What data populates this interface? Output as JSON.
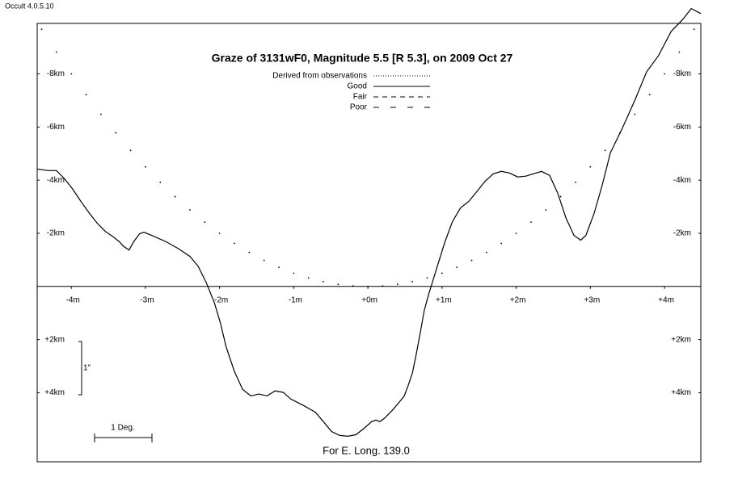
{
  "chart_data": {
    "type": "line",
    "program": "Occult 4.0.5.10",
    "title": "Graze of  3131wF0,  Magnitude 5.5 [R 5.3],  on 2009 Oct 27",
    "footer": "For E. Long. 139.0",
    "scale_labels": {
      "vertical": "1\"",
      "horizontal": "1 Deg."
    },
    "xlim": [
      -4.46,
      4.49
    ],
    "ylim": [
      6.6,
      -9.9
    ],
    "xticks": [
      {
        "value": -4,
        "label": "-4m"
      },
      {
        "value": -3,
        "label": "-3m"
      },
      {
        "value": -2,
        "label": "-2m"
      },
      {
        "value": -1,
        "label": "-1m"
      },
      {
        "value": 0,
        "label": "+0m"
      },
      {
        "value": 1,
        "label": "+1m"
      },
      {
        "value": 2,
        "label": "+2m"
      },
      {
        "value": 3,
        "label": "+3m"
      },
      {
        "value": 4,
        "label": "+4m"
      }
    ],
    "yticks": [
      {
        "value": -8,
        "label": "-8km"
      },
      {
        "value": -6,
        "label": "-6km"
      },
      {
        "value": -4,
        "label": "-4km"
      },
      {
        "value": -2,
        "label": "-2km"
      },
      {
        "value": 2,
        "label": "+2km"
      },
      {
        "value": 4,
        "label": "+4km"
      }
    ],
    "series": [
      {
        "name": "Derived from observations",
        "style": "dotted",
        "color": "#000000",
        "x": [
          -4.4,
          -4.2,
          -4.0,
          -3.8,
          -3.6,
          -3.4,
          -3.2,
          -3.0,
          -2.8,
          -2.6,
          -2.4,
          -2.2,
          -2.0,
          -1.8,
          -1.6,
          -1.4,
          -1.2,
          -1.0,
          -0.8,
          -0.6,
          -0.4,
          -0.2,
          0,
          0.2,
          0.4,
          0.6,
          0.8,
          1.0,
          1.2,
          1.4,
          1.6,
          1.8,
          2.0,
          2.2,
          2.4,
          2.6,
          2.8,
          3.0,
          3.2,
          3.4,
          3.6,
          3.8,
          4.0,
          4.2,
          4.4
        ],
        "values": [
          -9.68,
          -8.82,
          -8,
          -7.22,
          -6.48,
          -5.78,
          -5.12,
          -4.5,
          -3.92,
          -3.38,
          -2.88,
          -2.42,
          -2,
          -1.62,
          -1.28,
          -0.98,
          -0.72,
          -0.5,
          -0.32,
          -0.18,
          -0.08,
          -0.02,
          0,
          -0.02,
          -0.08,
          -0.18,
          -0.32,
          -0.5,
          -0.72,
          -0.98,
          -1.28,
          -1.62,
          -2,
          -2.42,
          -2.88,
          -3.38,
          -3.92,
          -4.5,
          -5.12,
          -5.78,
          -6.48,
          -7.22,
          -8,
          -8.82,
          -9.68
        ]
      },
      {
        "name": "Good",
        "style": "solid",
        "color": "#000000",
        "x": [
          -4.46,
          -4.31,
          -4.2,
          -4.09,
          -3.98,
          -3.87,
          -3.76,
          -3.65,
          -3.54,
          -3.43,
          -3.35,
          -3.3,
          -3.22,
          -3.16,
          -3.08,
          -3.02,
          -2.89,
          -2.72,
          -2.56,
          -2.4,
          -2.29,
          -2.18,
          -2.07,
          -1.99,
          -1.91,
          -1.8,
          -1.69,
          -1.58,
          -1.47,
          -1.36,
          -1.25,
          -1.14,
          -1.04,
          -0.87,
          -0.71,
          -0.6,
          -0.49,
          -0.38,
          -0.27,
          -0.16,
          -0.05,
          0.05,
          0.11,
          0.16,
          0.22,
          0.33,
          0.44,
          0.49,
          0.54,
          0.6,
          0.65,
          0.71,
          0.76,
          0.82,
          0.93,
          1.04,
          1.14,
          1.25,
          1.36,
          1.47,
          1.58,
          1.69,
          1.8,
          1.91,
          2.02,
          2.13,
          2.23,
          2.34,
          2.45,
          2.56,
          2.67,
          2.78,
          2.87,
          2.94,
          3.05,
          3.16,
          3.27,
          3.43,
          3.6,
          3.76,
          3.92,
          4.09,
          4.25,
          4.36,
          4.49
        ],
        "values": [
          -4.42,
          -4.36,
          -4.36,
          -4.05,
          -3.66,
          -3.2,
          -2.77,
          -2.38,
          -2.07,
          -1.86,
          -1.68,
          -1.52,
          -1.37,
          -1.68,
          -1.98,
          -2.04,
          -1.89,
          -1.68,
          -1.43,
          -1.13,
          -0.76,
          -0.15,
          0.61,
          1.37,
          2.29,
          3.2,
          3.87,
          4.12,
          4.05,
          4.12,
          3.93,
          3.99,
          4.24,
          4.48,
          4.73,
          5.09,
          5.46,
          5.61,
          5.64,
          5.58,
          5.34,
          5.09,
          5.03,
          5.09,
          4.97,
          4.66,
          4.3,
          4.12,
          3.75,
          3.26,
          2.59,
          1.68,
          0.91,
          0.3,
          -0.7,
          -1.68,
          -2.44,
          -2.96,
          -3.2,
          -3.57,
          -3.96,
          -4.24,
          -4.33,
          -4.27,
          -4.12,
          -4.15,
          -4.24,
          -4.33,
          -4.18,
          -3.51,
          -2.59,
          -1.92,
          -1.74,
          -1.92,
          -2.74,
          -3.81,
          -5.03,
          -5.95,
          -7.01,
          -8.08,
          -8.69,
          -9.6,
          -10.06,
          -10.46,
          -10.27
        ]
      },
      {
        "name": "Fair",
        "style": "dashed",
        "color": "#000000",
        "x": [],
        "values": []
      },
      {
        "name": "Poor",
        "style": "long-dashed",
        "color": "#000000",
        "x": [],
        "values": []
      }
    ]
  }
}
